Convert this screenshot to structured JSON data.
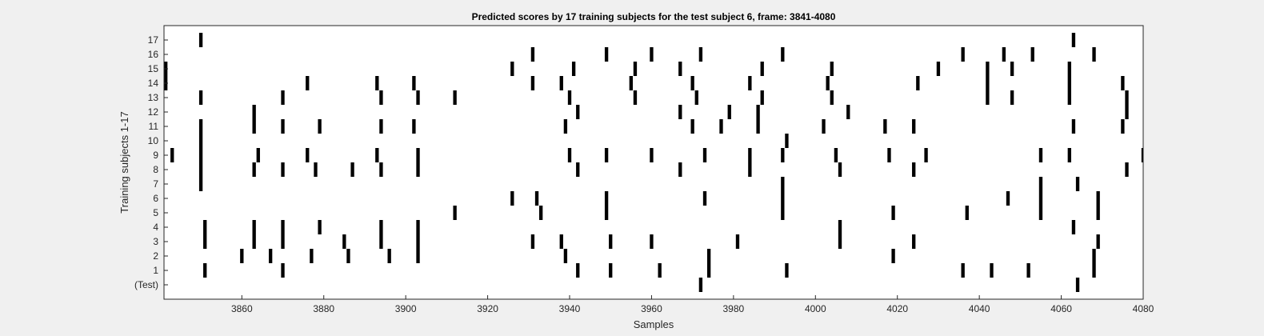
{
  "chart_data": {
    "type": "raster",
    "title": "Predicted scores by 17 training subjects for the test subject 6, frame: 3841-4080",
    "xlabel": "Samples",
    "ylabel": "Training subjects 1-17",
    "xlim": [
      3841,
      4080
    ],
    "x_ticks": [
      3860,
      3880,
      3900,
      3920,
      3940,
      3960,
      3980,
      4000,
      4020,
      4040,
      4060,
      4080
    ],
    "y_tick_labels": [
      "(Test)",
      "1",
      "2",
      "3",
      "4",
      "5",
      "6",
      "7",
      "8",
      "9",
      "10",
      "11",
      "12",
      "13",
      "14",
      "15",
      "16",
      "17"
    ],
    "grid": false,
    "colors": {
      "mark": "#000000",
      "axes_bg": "#ffffff",
      "figure_bg": "#f0f0f0"
    },
    "rows": [
      {
        "label": "(Test)",
        "samples": [
          3972,
          4064
        ]
      },
      {
        "label": "1",
        "samples": [
          3851,
          3870,
          3942,
          3950,
          3962,
          3974,
          3993,
          4036,
          4043,
          4052,
          4068
        ]
      },
      {
        "label": "2",
        "samples": [
          3860,
          3867,
          3877,
          3886,
          3896,
          3903,
          3939,
          3974,
          4019,
          4068
        ]
      },
      {
        "label": "3",
        "samples": [
          3851,
          3863,
          3870,
          3885,
          3894,
          3903,
          3931,
          3938,
          3950,
          3960,
          3981,
          4006,
          4024,
          4069
        ]
      },
      {
        "label": "4",
        "samples": [
          3851,
          3863,
          3870,
          3879,
          3894,
          3903,
          4006,
          4063
        ]
      },
      {
        "label": "5",
        "samples": [
          3912,
          3933,
          3949,
          3992,
          4019,
          4037,
          4055,
          4069
        ]
      },
      {
        "label": "6",
        "samples": [
          3926,
          3932,
          3949,
          3973,
          3992,
          4047,
          4055,
          4069
        ]
      },
      {
        "label": "7",
        "samples": [
          3850,
          3992,
          4055,
          4064
        ]
      },
      {
        "label": "8",
        "samples": [
          3850,
          3863,
          3870,
          3878,
          3887,
          3894,
          3903,
          3942,
          3967,
          3984,
          4006,
          4024,
          4076
        ]
      },
      {
        "label": "9",
        "samples": [
          3843,
          3850,
          3864,
          3876,
          3893,
          3903,
          3940,
          3949,
          3960,
          3973,
          3984,
          3992,
          4005,
          4018,
          4027,
          4055,
          4062,
          4080
        ]
      },
      {
        "label": "10",
        "samples": [
          3850,
          3993
        ]
      },
      {
        "label": "11",
        "samples": [
          3850,
          3863,
          3870,
          3879,
          3894,
          3902,
          3939,
          3970,
          3977,
          3986,
          4002,
          4017,
          4024,
          4063,
          4075
        ]
      },
      {
        "label": "12",
        "samples": [
          3863,
          3942,
          3967,
          3979,
          3986,
          4008,
          4076
        ]
      },
      {
        "label": "13",
        "samples": [
          3850,
          3870,
          3894,
          3903,
          3912,
          3940,
          3956,
          3971,
          3987,
          4004,
          4042,
          4048,
          4062,
          4076
        ]
      },
      {
        "label": "14",
        "samples": [
          3841,
          3876,
          3893,
          3902,
          3931,
          3938,
          3955,
          3970,
          3984,
          4003,
          4025,
          4042,
          4062,
          4075
        ]
      },
      {
        "label": "15",
        "samples": [
          3841,
          3926,
          3941,
          3956,
          3967,
          3987,
          4004,
          4030,
          4042,
          4048,
          4062
        ]
      },
      {
        "label": "16",
        "samples": [
          3931,
          3949,
          3960,
          3972,
          3992,
          4036,
          4046,
          4053,
          4068
        ]
      },
      {
        "label": "17",
        "samples": [
          3850,
          4063
        ]
      }
    ]
  }
}
